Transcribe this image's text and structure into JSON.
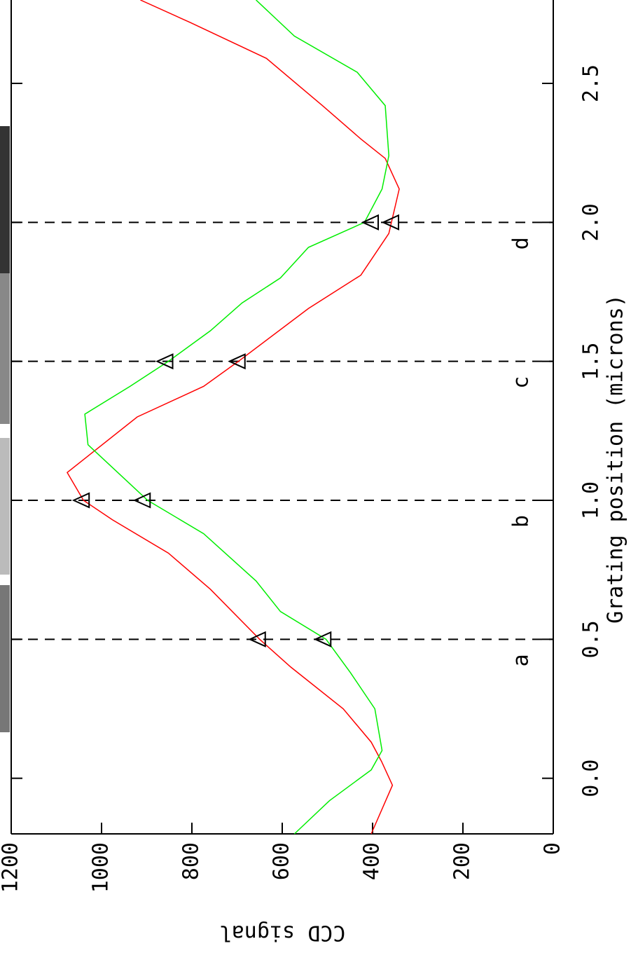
{
  "chart_data": {
    "type": "line",
    "xlabel": "Grating position (microns)",
    "ylabel": "CCD signal",
    "xlim": [
      -0.2,
      2.8
    ],
    "ylim": [
      0,
      1200
    ],
    "xticks": [
      {
        "value": 0,
        "label": "0.0"
      },
      {
        "value": 0.5,
        "label": "0.5"
      },
      {
        "value": 1,
        "label": "1.0"
      },
      {
        "value": 1.5,
        "label": "1.5"
      },
      {
        "value": 2,
        "label": "2.0"
      },
      {
        "value": 2.5,
        "label": "2.5"
      }
    ],
    "yticks": [
      0,
      200,
      400,
      600,
      800,
      1000,
      1200
    ],
    "series": [
      {
        "color": "#ff0000",
        "x": [
          -0.2,
          -0.025,
          0.06,
          0.13,
          0.25,
          0.4,
          0.5,
          0.68,
          0.81,
          0.93,
          1.0,
          1.1,
          1.3,
          1.41,
          1.5,
          1.69,
          1.81,
          1.96,
          2.12,
          2.23,
          2.3,
          2.42,
          2.59,
          2.72,
          2.8
        ],
        "values": [
          403,
          356,
          380,
          403,
          465,
          581,
          650,
          759,
          852,
          976,
          1040,
          1076,
          921,
          774,
          697,
          542,
          426,
          364,
          341,
          372,
          426,
          511,
          635,
          805,
          914
        ]
      },
      {
        "color": "#00ee00",
        "x": [
          -0.2,
          -0.08,
          0.03,
          0.1,
          0.25,
          0.38,
          0.5,
          0.6,
          0.71,
          0.88,
          1.0,
          1.2,
          1.31,
          1.41,
          1.5,
          1.61,
          1.71,
          1.8,
          1.91,
          2.0,
          2.12,
          2.24,
          2.42,
          2.54,
          2.67,
          2.8
        ],
        "values": [
          573,
          495,
          403,
          379,
          395,
          449,
          503,
          604,
          658,
          774,
          898,
          1030,
          1037,
          937,
          852,
          759,
          689,
          604,
          542,
          418,
          379,
          364,
          372,
          434,
          573,
          658
        ]
      }
    ],
    "markers": [
      {
        "x": [
          0.5,
          1.0,
          1.5,
          2.0
        ],
        "values": [
          650,
          1040,
          695,
          355
        ]
      },
      {
        "x": [
          0.5,
          1.0,
          1.5,
          2.0
        ],
        "values": [
          505,
          905,
          855,
          400
        ]
      }
    ],
    "vlines": [
      0.5,
      1.0,
      1.5,
      2.0
    ],
    "annotations": [
      "a",
      "b",
      "c",
      "d"
    ]
  }
}
